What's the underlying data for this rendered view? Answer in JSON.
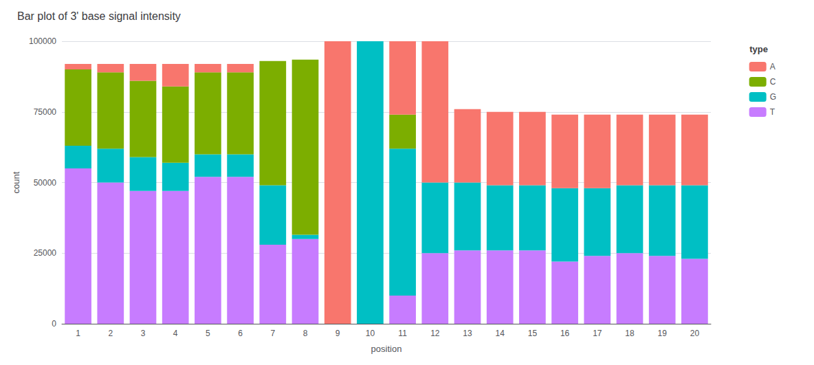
{
  "chart_data": {
    "type": "bar",
    "title": "Bar plot of 3' base signal intensity",
    "xlabel": "position",
    "ylabel": "count",
    "legend_title": "type",
    "categories": [
      1,
      2,
      3,
      4,
      5,
      6,
      7,
      8,
      9,
      10,
      11,
      12,
      13,
      14,
      15,
      16,
      17,
      18,
      19,
      20
    ],
    "stacked": true,
    "series": [
      {
        "name": "T",
        "color": "#C77CFF",
        "values": [
          55000,
          50000,
          47000,
          47000,
          52000,
          52000,
          28000,
          30000,
          0,
          0,
          10000,
          25000,
          26000,
          26000,
          26000,
          22000,
          24000,
          25000,
          24000,
          23000
        ]
      },
      {
        "name": "G",
        "color": "#00BFC4",
        "values": [
          8000,
          12000,
          12000,
          10000,
          8000,
          8000,
          21000,
          1500,
          0,
          100000,
          52000,
          25000,
          24000,
          23000,
          23000,
          26000,
          24000,
          24000,
          25000,
          26000
        ]
      },
      {
        "name": "C",
        "color": "#7CAE00",
        "values": [
          27000,
          27000,
          27000,
          27000,
          29000,
          29000,
          44000,
          62000,
          0,
          0,
          12000,
          0,
          0,
          0,
          0,
          0,
          0,
          0,
          0,
          0
        ]
      },
      {
        "name": "A",
        "color": "#F8766D",
        "values": [
          2000,
          3000,
          6000,
          8000,
          3000,
          3000,
          0,
          0,
          100000,
          0,
          26000,
          50000,
          26000,
          26000,
          26000,
          26000,
          26000,
          25000,
          25000,
          25000
        ]
      }
    ],
    "ylim": [
      0,
      100000
    ],
    "yticks": [
      0,
      25000,
      50000,
      75000,
      100000
    ],
    "grid": true,
    "legend": "right"
  }
}
